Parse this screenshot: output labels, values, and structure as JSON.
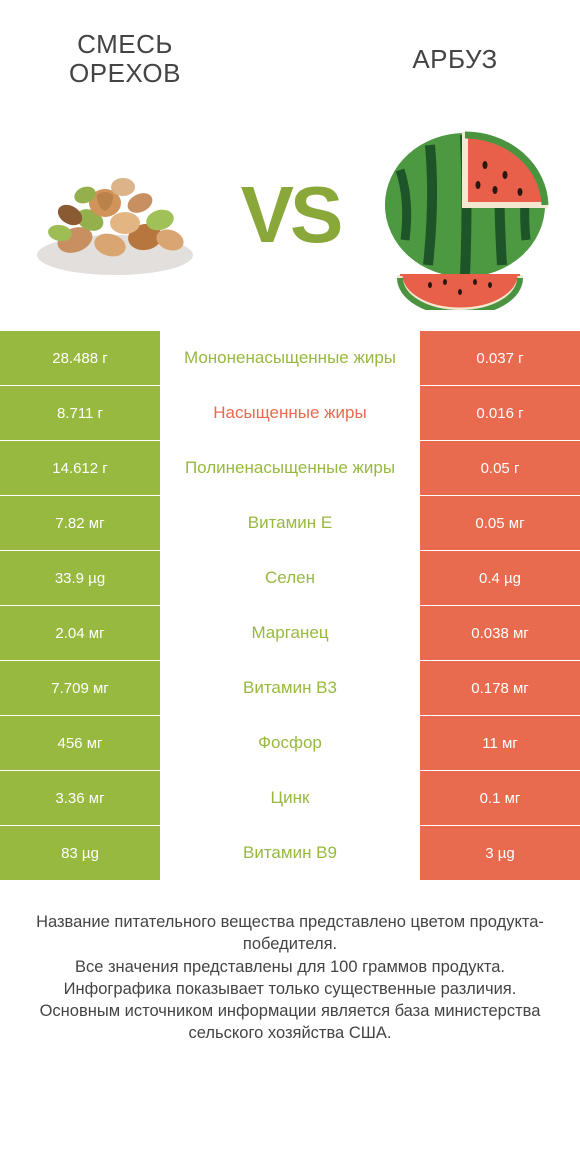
{
  "header": {
    "left_title": "СМЕСЬ ОРЕХОВ",
    "right_title": "АРБУЗ",
    "vs_text": "VS"
  },
  "colors": {
    "left_bg": "#97b93f",
    "right_bg": "#e86a4f",
    "left_text": "#97b93f",
    "right_text": "#e86a4f",
    "vs_color": "#8aa83a",
    "page_bg": "#ffffff",
    "body_text": "#444444"
  },
  "rows": [
    {
      "left": "28.488 г",
      "label": "Мононенасыщенные жиры",
      "right": "0.037 г",
      "winner": "left"
    },
    {
      "left": "8.711 г",
      "label": "Насыщенные жиры",
      "right": "0.016 г",
      "winner": "right"
    },
    {
      "left": "14.612 г",
      "label": "Полиненасыщенные жиры",
      "right": "0.05 г",
      "winner": "left"
    },
    {
      "left": "7.82 мг",
      "label": "Витамин E",
      "right": "0.05 мг",
      "winner": "left"
    },
    {
      "left": "33.9 µg",
      "label": "Селен",
      "right": "0.4 µg",
      "winner": "left"
    },
    {
      "left": "2.04 мг",
      "label": "Марганец",
      "right": "0.038 мг",
      "winner": "left"
    },
    {
      "left": "7.709 мг",
      "label": "Витамин B3",
      "right": "0.178 мг",
      "winner": "left"
    },
    {
      "left": "456 мг",
      "label": "Фосфор",
      "right": "11 мг",
      "winner": "left"
    },
    {
      "left": "3.36 мг",
      "label": "Цинк",
      "right": "0.1 мг",
      "winner": "left"
    },
    {
      "left": "83 µg",
      "label": "Витамин B9",
      "right": "3 µg",
      "winner": "left"
    }
  ],
  "footer": {
    "line1": "Название питательного вещества представлено цветом продукта-победителя.",
    "line2": "Все значения представлены для 100 граммов продукта.",
    "line3": "Инфографика показывает только существенные различия.",
    "line4": "Основным источником информации является база министерства сельского хозяйства США."
  }
}
